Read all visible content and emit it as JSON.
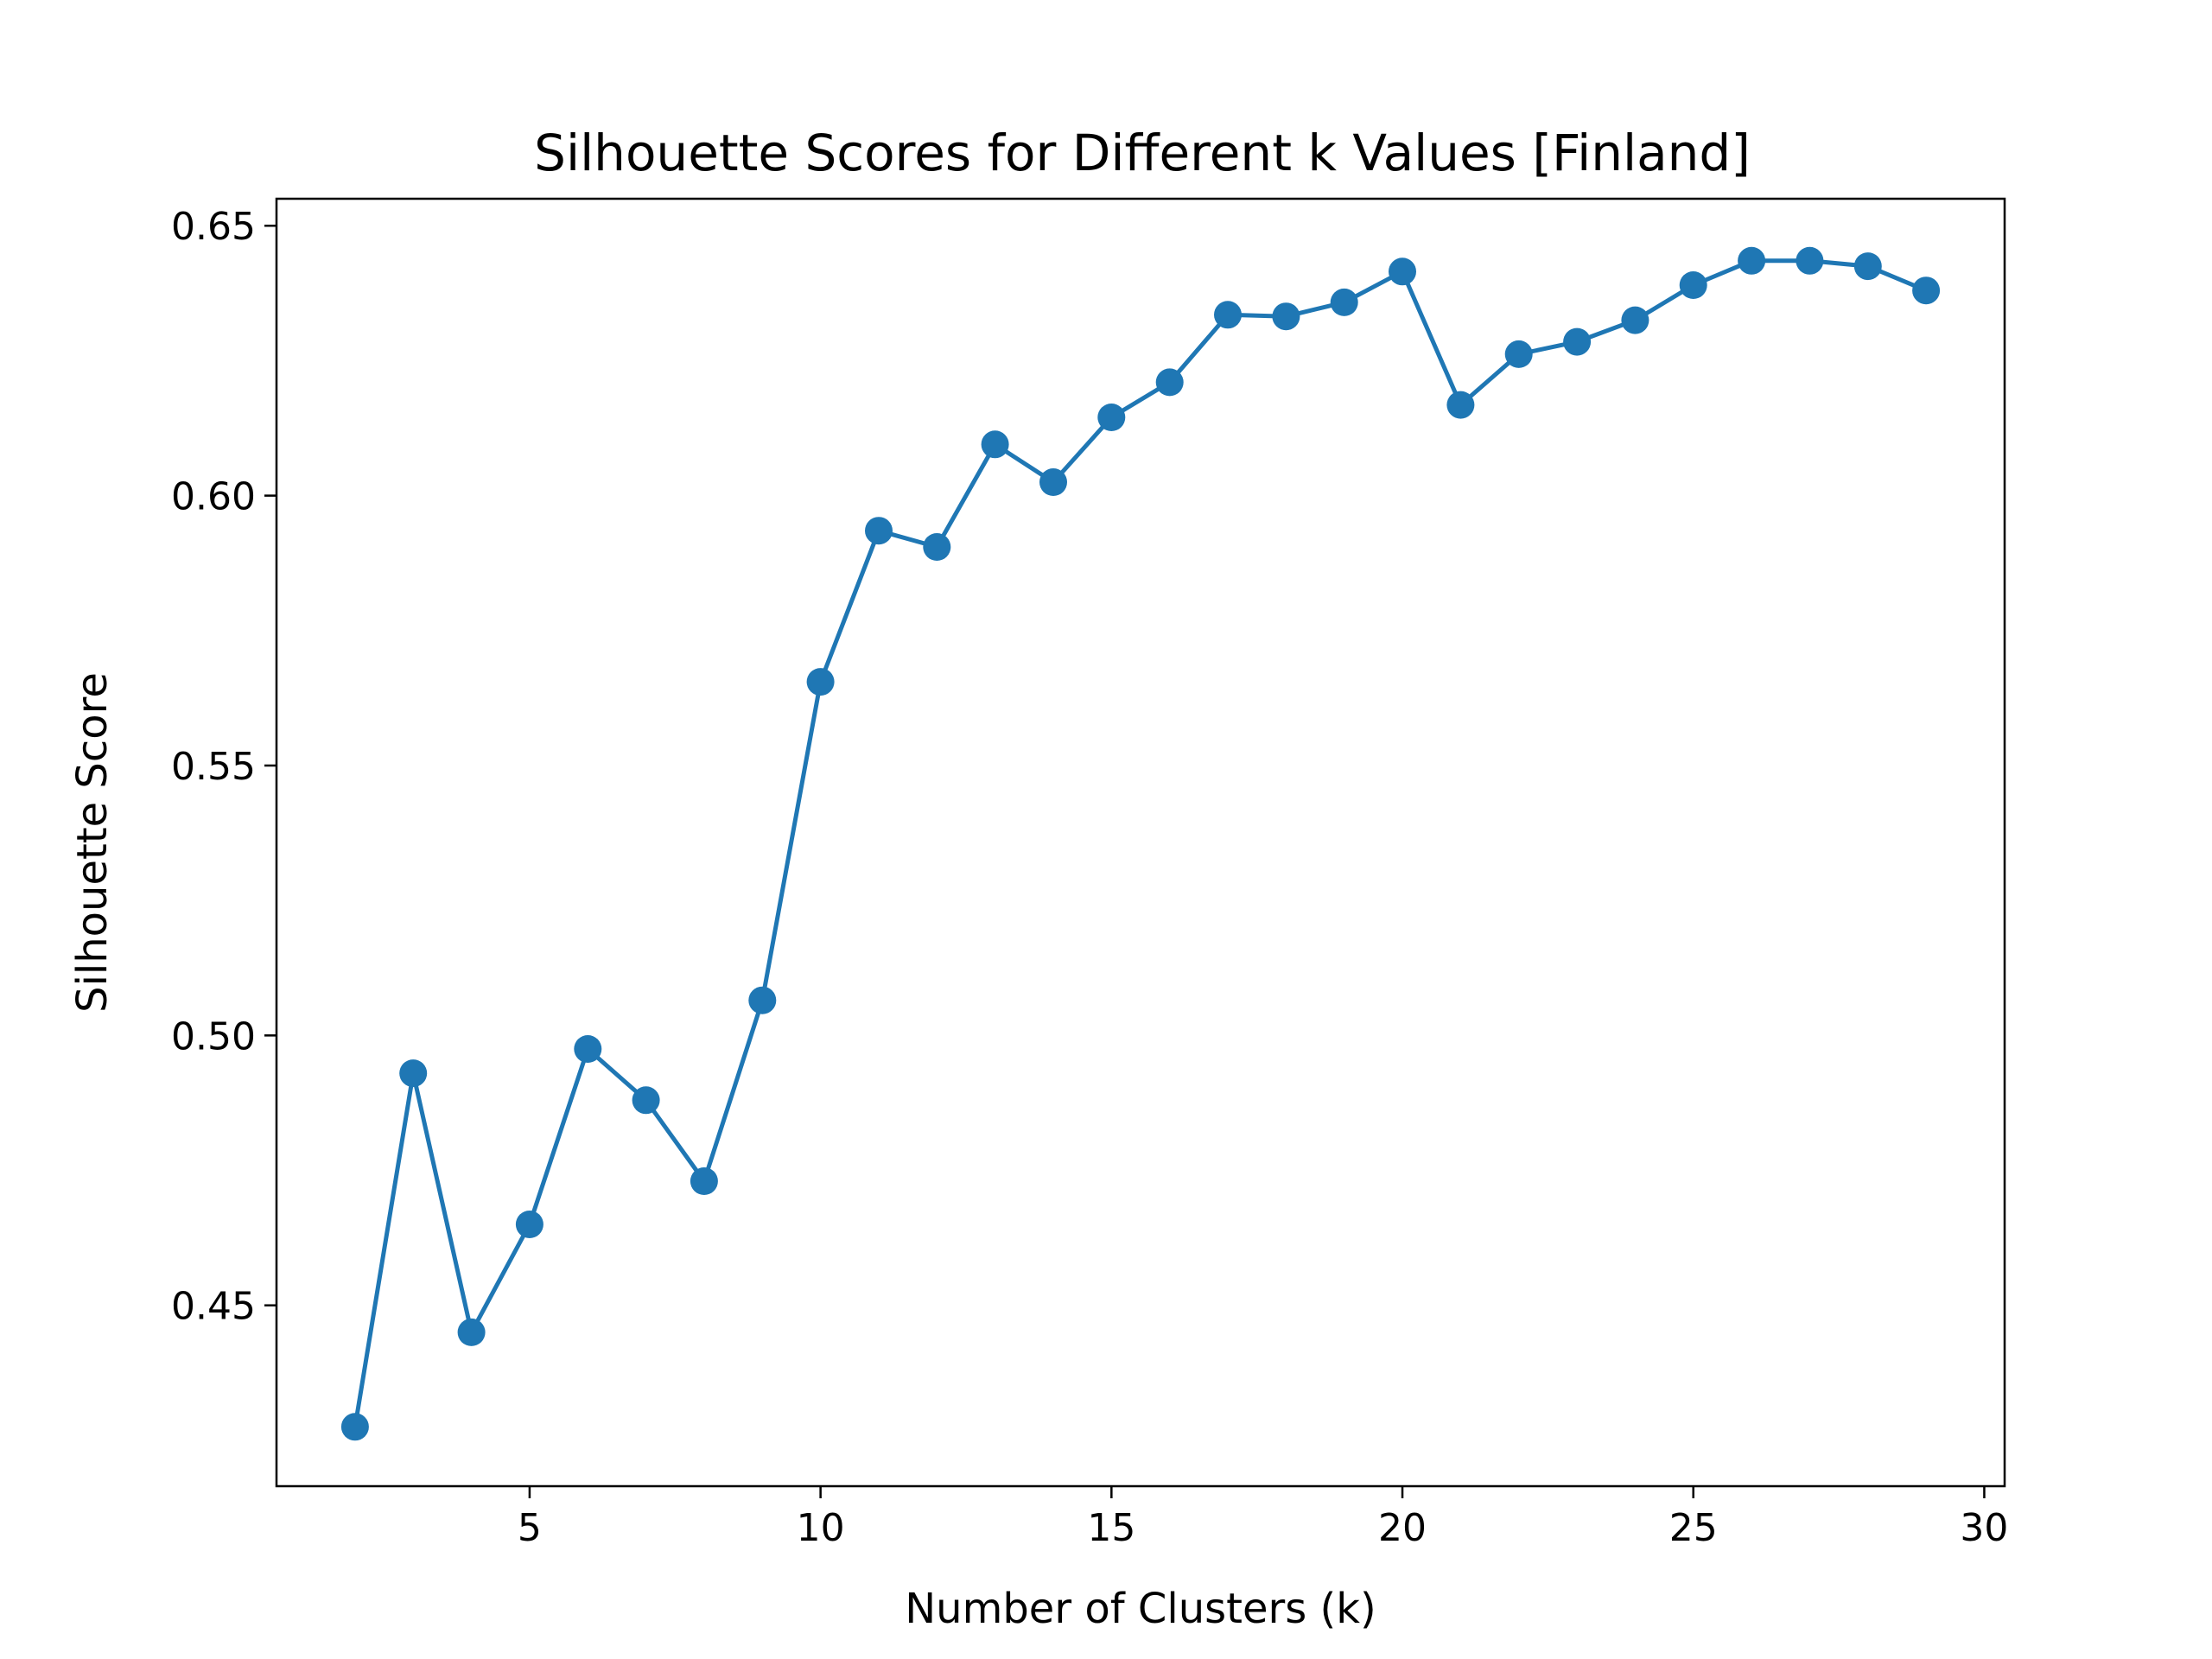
{
  "chart_data": {
    "type": "line",
    "title": "Silhouette Scores for Different k Values [Finland]",
    "xlabel": "Number of Clusters (k)",
    "ylabel": "Silhouette Score",
    "xlim": [
      0.65,
      30.35
    ],
    "ylim": [
      0.4165,
      0.655
    ],
    "xticks": [
      5,
      10,
      15,
      20,
      25,
      30
    ],
    "xtick_labels": [
      "5",
      "10",
      "15",
      "20",
      "25",
      "30"
    ],
    "yticks": [
      0.45,
      0.5,
      0.55,
      0.6,
      0.65
    ],
    "ytick_labels": [
      "0.45",
      "0.50",
      "0.55",
      "0.60",
      "0.65"
    ],
    "grid": false,
    "marker": "circle",
    "series": [
      {
        "color": "#1f77b4",
        "x": [
          2,
          3,
          4,
          5,
          6,
          7,
          8,
          9,
          10,
          11,
          12,
          13,
          14,
          15,
          16,
          17,
          18,
          19,
          20,
          21,
          22,
          23,
          24,
          25,
          26,
          27,
          28,
          29
        ],
        "values": [
          0.4275,
          0.493,
          0.445,
          0.465,
          0.4975,
          0.488,
          0.473,
          0.5065,
          0.5655,
          0.5935,
          0.5905,
          0.6095,
          0.6025,
          0.6145,
          0.621,
          0.6335,
          0.6332,
          0.6358,
          0.6415,
          0.6168,
          0.6262,
          0.6285,
          0.6325,
          0.639,
          0.6435,
          0.6435,
          0.6425,
          0.638
        ]
      }
    ]
  }
}
